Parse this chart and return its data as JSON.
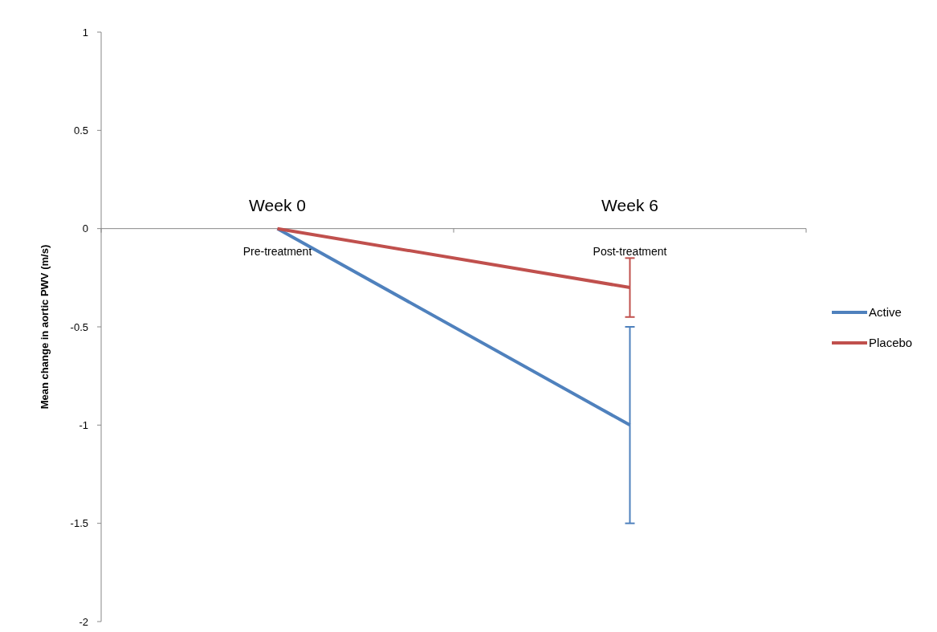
{
  "chart_data": {
    "type": "line",
    "ylabel": "Mean change in aortic PWV (m/s)",
    "categories": [
      "Pre-treatment",
      "Post-treatment"
    ],
    "series": [
      {
        "name": "Active",
        "color": "#4f81bd",
        "values": [
          0,
          -1
        ],
        "errors": [
          null,
          0.5
        ]
      },
      {
        "name": "Placebo",
        "color": "#c0504d",
        "values": [
          0,
          -0.3
        ],
        "errors": [
          null,
          0.15
        ]
      }
    ],
    "ylim": [
      -2,
      1
    ],
    "yticks": [
      -2,
      -1.5,
      -1,
      -0.5,
      0,
      0.5,
      1
    ],
    "grid": false,
    "legend": "right",
    "marker": "none",
    "line_style": "solid",
    "annotations": [
      "Week 0",
      "Week 6"
    ]
  }
}
